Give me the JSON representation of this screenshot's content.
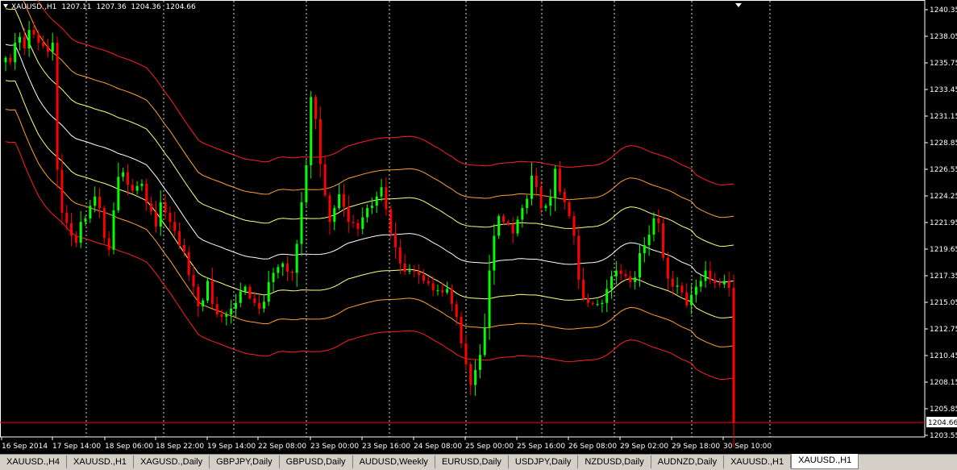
{
  "header": {
    "symbol": "XAUUSD.,H1",
    "open": "1207.11",
    "high": "1207.36",
    "low": "1204.36",
    "close": "1204.66"
  },
  "colors": {
    "background": "#000000",
    "bull": "#00ff00",
    "bear": "#ff0000",
    "grid": "#ffffff",
    "band_mid": "#ffffff",
    "band_1": "#ffff80",
    "band_2": "#ffa030",
    "band_3": "#ff2020",
    "price_line": "#ff0000"
  },
  "tabs": [
    {
      "label": "XAUUSD.,H4",
      "active": false
    },
    {
      "label": "XAUUSD.,H1",
      "active": false
    },
    {
      "label": "XAGUSD.,Daily",
      "active": false
    },
    {
      "label": "GBPJPY,Daily",
      "active": false
    },
    {
      "label": "GBPUSD,Daily",
      "active": false
    },
    {
      "label": "AUDUSD,Weekly",
      "active": false
    },
    {
      "label": "EURUSD,Daily",
      "active": false
    },
    {
      "label": "USDJPY,Daily",
      "active": false
    },
    {
      "label": "NZDUSD,Daily",
      "active": false
    },
    {
      "label": "AUDNZD,Daily",
      "active": false
    },
    {
      "label": "XAUUSD.,H1",
      "active": false
    },
    {
      "label": "XAUUSD.,H1",
      "active": true
    }
  ],
  "chart_data": {
    "type": "candlestick",
    "ylim": [
      1203.55,
      1240.35
    ],
    "grid": "vertical-dotted",
    "y_ticks": [
      "1240.35",
      "1238.05",
      "1235.75",
      "1233.45",
      "1231.15",
      "1228.85",
      "1226.55",
      "1224.25",
      "1221.95",
      "1219.65",
      "1217.35",
      "1215.05",
      "1212.75",
      "1210.45",
      "1208.15",
      "1205.85",
      "1203.55"
    ],
    "x_ticks": [
      "16 Sep 2014",
      "17 Sep 14:00",
      "18 Sep 06:00",
      "18 Sep 22:00",
      "19 Sep 14:00",
      "22 Sep 08:00",
      "23 Sep 00:00",
      "23 Sep 16:00",
      "24 Sep 08:00",
      "25 Sep 00:00",
      "25 Sep 16:00",
      "26 Sep 08:00",
      "29 Sep 02:00",
      "29 Sep 18:00",
      "30 Sep 10:00"
    ],
    "current_price": "1204.66",
    "closes": [
      1236.2,
      1235.8,
      1237.5,
      1238.0,
      1237.0,
      1238.6,
      1238.2,
      1237.5,
      1237.2,
      1236.7,
      1237.5,
      1226.5,
      1222.8,
      1221.9,
      1220.8,
      1220.2,
      1222.0,
      1222.3,
      1223.4,
      1224.2,
      1223.2,
      1220.6,
      1219.6,
      1223.0,
      1225.9,
      1226.3,
      1225.2,
      1224.7,
      1225.1,
      1225.3,
      1223.6,
      1222.9,
      1221.6,
      1223.7,
      1222.8,
      1222.0,
      1221.2,
      1220.0,
      1219.4,
      1217.4,
      1216.4,
      1214.7,
      1215.2,
      1216.9,
      1214.9,
      1214.0,
      1213.8,
      1214.0,
      1214.5,
      1215.0,
      1216.0,
      1216.4,
      1215.4,
      1215.0,
      1214.5,
      1215.1,
      1216.8,
      1217.6,
      1218.1,
      1218.4,
      1217.7,
      1217.6,
      1220.1,
      1223.7,
      1226.9,
      1232.8,
      1230.9,
      1227.0,
      1224.3,
      1222.0,
      1223.2,
      1224.4,
      1223.3,
      1222.0,
      1221.9,
      1221.4,
      1222.4,
      1223.2,
      1223.4,
      1224.2,
      1225.0,
      1223.1,
      1221.0,
      1219.8,
      1218.4,
      1217.7,
      1217.8,
      1217.7,
      1217.4,
      1216.9,
      1216.7,
      1216.1,
      1216.1,
      1215.9,
      1216.2,
      1214.9,
      1213.8,
      1211.5,
      1209.7,
      1207.9,
      1209.2,
      1210.5,
      1212.9,
      1217.8,
      1220.8,
      1222.5,
      1222.0,
      1221.8,
      1221.0,
      1222.2,
      1223.2,
      1224.0,
      1226.0,
      1225.0,
      1223.2,
      1223.4,
      1224.1,
      1226.6,
      1224.6,
      1223.7,
      1222.5,
      1220.8,
      1217.0,
      1215.4,
      1215.0,
      1214.9,
      1214.9,
      1215.0,
      1216.2,
      1217.3,
      1217.8,
      1217.5,
      1217.3,
      1216.8,
      1217.2,
      1219.3,
      1220.0,
      1220.9,
      1222.3,
      1221.9,
      1218.9,
      1217.1,
      1216.4,
      1216.5,
      1215.9,
      1214.8,
      1215.7,
      1216.4,
      1216.9,
      1217.8,
      1217.0,
      1216.7,
      1216.6,
      1216.9,
      1216.3,
      1204.66
    ]
  }
}
